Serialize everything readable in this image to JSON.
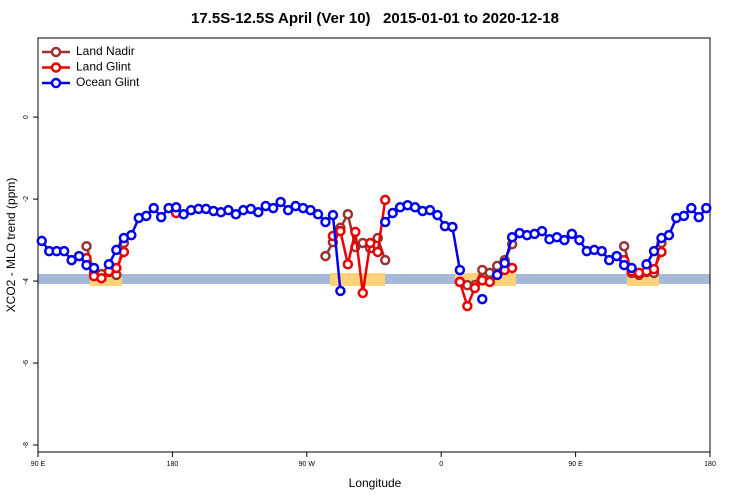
{
  "chart_data": {
    "type": "line",
    "title": "17.5S-12.5S April (Ver 10)   2015-01-01 to 2020-12-18",
    "x_label": "Longitude",
    "y_label": "XCO2 - MLO trend (ppm)",
    "xlim": [
      90,
      540
    ],
    "ylim": [
      -8.17,
      1.93
    ],
    "xticks": [
      {
        "value": 90,
        "label": "90 E"
      },
      180,
      {
        "value": 270,
        "label": "90 W"
      },
      {
        "value": 360,
        "label": "0"
      },
      {
        "value": 450,
        "label": "90 E"
      },
      {
        "value": 540,
        "label": "180"
      }
    ],
    "yticks": [
      0,
      -2,
      -4,
      -6,
      -8
    ],
    "legend": "top-left",
    "x": [
      92.5,
      97.5,
      102.5,
      107.5,
      112.5,
      117.5,
      122.5,
      127.5,
      132.5,
      137.5,
      142.5,
      147.5,
      152.5,
      157.5,
      162.5,
      167.5,
      172.5,
      177.5,
      182.5,
      187.5,
      192.5,
      197.5,
      202.5,
      207.5,
      212.5,
      217.5,
      222.5,
      227.5,
      232.5,
      237.5,
      242.5,
      247.5,
      252.5,
      257.5,
      262.5,
      267.5,
      272.5,
      277.5,
      282.5,
      287.5,
      292.5,
      297.5,
      302.5,
      307.5,
      312.5,
      317.5,
      322.5,
      327.5,
      332.5,
      337.5,
      342.5,
      347.5,
      352.5,
      357.5,
      362.5,
      367.5,
      372.5,
      377.5,
      382.5,
      387.5,
      392.5,
      397.5,
      402.5,
      407.5,
      412.5,
      417.5,
      422.5,
      427.5,
      432.5,
      437.5,
      442.5,
      447.5,
      452.5,
      457.5,
      462.5,
      467.5,
      472.5,
      477.5,
      482.5,
      487.5,
      492.5,
      497.5,
      502.5,
      507.5,
      512.5,
      517.5,
      522.5,
      527.5,
      532.5,
      537.5
    ],
    "series": [
      {
        "name": "Land Nadir",
        "color": "#993333",
        "values": [
          null,
          null,
          null,
          null,
          null,
          null,
          -3.15,
          -3.8,
          -3.83,
          -3.78,
          -3.85,
          -3.07,
          null,
          null,
          null,
          null,
          null,
          null,
          null,
          null,
          null,
          null,
          null,
          null,
          null,
          null,
          null,
          null,
          null,
          null,
          null,
          null,
          null,
          null,
          null,
          null,
          null,
          null,
          -3.39,
          -3.05,
          -2.7,
          -2.37,
          -3.17,
          -3.07,
          -3.2,
          -2.95,
          -3.49,
          null,
          null,
          null,
          null,
          null,
          null,
          null,
          null,
          null,
          -4.02,
          -4.1,
          -4.1,
          -3.73,
          -3.8,
          -3.63,
          -3.49,
          -3.1,
          null,
          null,
          null,
          null,
          null,
          null,
          null,
          null,
          null,
          null,
          null,
          null,
          null,
          null,
          -3.15,
          -3.8,
          -3.85,
          -3.78,
          -3.8,
          -3.07,
          null,
          null,
          null,
          null,
          null,
          null
        ]
      },
      {
        "name": "Land Glint",
        "color": "#ee0000",
        "values": [
          null,
          null,
          null,
          null,
          null,
          null,
          -3.44,
          -3.88,
          -3.93,
          -3.76,
          -3.68,
          -3.29,
          null,
          null,
          null,
          null,
          null,
          null,
          -2.34,
          null,
          null,
          null,
          null,
          null,
          null,
          null,
          null,
          null,
          null,
          null,
          null,
          null,
          null,
          null,
          null,
          null,
          null,
          null,
          null,
          -2.9,
          -2.78,
          -3.59,
          -2.8,
          -4.29,
          -3.07,
          -3.29,
          -2.02,
          null,
          null,
          null,
          null,
          null,
          null,
          null,
          null,
          null,
          -4.02,
          -4.61,
          -4.17,
          -3.98,
          -4.02,
          -3.85,
          -3.73,
          -3.68,
          null,
          null,
          null,
          null,
          null,
          null,
          null,
          null,
          null,
          null,
          null,
          null,
          null,
          null,
          -3.49,
          -3.76,
          -3.8,
          -3.76,
          -3.71,
          -3.29,
          null,
          null,
          null,
          null,
          null,
          null
        ]
      },
      {
        "name": "Ocean Glint",
        "color": "#0000ee",
        "values": [
          -3.02,
          -3.27,
          -3.27,
          -3.27,
          -3.49,
          -3.39,
          -3.61,
          -3.68,
          null,
          -3.59,
          -3.24,
          -2.95,
          -2.88,
          -2.46,
          -2.41,
          -2.22,
          -2.44,
          -2.22,
          -2.2,
          -2.37,
          -2.27,
          -2.24,
          -2.24,
          -2.29,
          -2.32,
          -2.27,
          -2.37,
          -2.27,
          -2.24,
          -2.32,
          -2.17,
          -2.22,
          -2.07,
          -2.27,
          -2.17,
          -2.22,
          -2.27,
          -2.37,
          -2.56,
          -2.39,
          -4.24,
          null,
          null,
          null,
          null,
          null,
          -2.56,
          -2.34,
          -2.2,
          -2.15,
          -2.2,
          -2.29,
          -2.27,
          -2.39,
          -2.66,
          -2.68,
          -3.73,
          null,
          null,
          -4.44,
          null,
          -3.85,
          -3.56,
          -2.93,
          -2.83,
          -2.88,
          -2.85,
          -2.78,
          -2.98,
          -2.93,
          -3.0,
          -2.85,
          -3.0,
          -3.27,
          -3.24,
          -3.27,
          -3.49,
          -3.39,
          -3.61,
          -3.68,
          null,
          -3.59,
          -3.27,
          -2.95,
          -2.88,
          -2.46,
          -2.41,
          -2.22,
          -2.44,
          -2.22
        ]
      }
    ]
  }
}
